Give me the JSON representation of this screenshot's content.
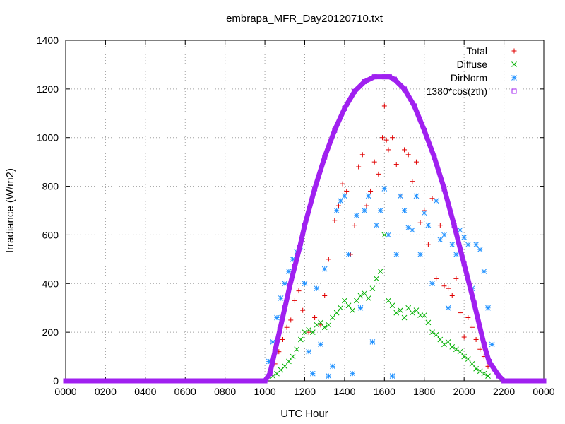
{
  "chart_data": {
    "type": "scatter",
    "title": "embrapa_MFR_Day20120710.txt",
    "xlabel": "UTC Hour",
    "ylabel": "Irradiance (W/m2)",
    "xlim": [
      0,
      24
    ],
    "ylim": [
      0,
      1400
    ],
    "x_ticks": [
      0,
      2,
      4,
      6,
      8,
      10,
      12,
      14,
      16,
      18,
      20,
      22,
      24
    ],
    "x_tick_labels": [
      "0000",
      "0200",
      "0400",
      "0600",
      "0800",
      "1000",
      "1200",
      "1400",
      "1600",
      "1800",
      "2000",
      "2200",
      "0000"
    ],
    "y_ticks": [
      0,
      200,
      400,
      600,
      800,
      1000,
      1200,
      1400
    ],
    "y_tick_labels": [
      "0",
      "200",
      "400",
      "600",
      "800",
      "1000",
      "1200",
      "1400"
    ],
    "grid": true,
    "legend_position": "top-right",
    "series": [
      {
        "name": "Total",
        "marker": "plus",
        "color": "#e00000",
        "x": [
          10.5,
          10.7,
          10.9,
          11.1,
          11.3,
          11.5,
          11.7,
          11.9,
          12.2,
          12.5,
          12.8,
          13.0,
          13.2,
          13.5,
          13.7,
          13.9,
          14.1,
          14.3,
          14.5,
          14.7,
          14.9,
          15.1,
          15.3,
          15.5,
          15.7,
          15.9,
          16.0,
          16.1,
          16.2,
          16.4,
          16.6,
          16.8,
          17.0,
          17.2,
          17.4,
          17.6,
          17.8,
          18.0,
          18.2,
          18.4,
          18.6,
          18.8,
          19.0,
          19.2,
          19.4,
          19.6,
          19.8,
          20.0,
          20.2,
          20.4,
          20.6,
          20.8,
          21.0,
          21.2
        ],
        "y": [
          70,
          120,
          170,
          220,
          250,
          330,
          370,
          290,
          200,
          260,
          230,
          350,
          500,
          660,
          720,
          810,
          780,
          520,
          640,
          880,
          930,
          720,
          780,
          900,
          850,
          1000,
          1130,
          990,
          950,
          1000,
          890,
          760,
          950,
          930,
          820,
          900,
          650,
          700,
          560,
          750,
          420,
          640,
          390,
          380,
          350,
          420,
          280,
          180,
          260,
          220,
          170,
          130,
          100,
          60
        ]
      },
      {
        "name": "Diffuse",
        "marker": "cross",
        "color": "#00b000",
        "x": [
          10.4,
          10.6,
          10.8,
          11.0,
          11.2,
          11.4,
          11.6,
          11.8,
          12.0,
          12.2,
          12.4,
          12.6,
          12.8,
          13.0,
          13.2,
          13.4,
          13.6,
          13.8,
          14.0,
          14.2,
          14.4,
          14.6,
          14.8,
          15.0,
          15.2,
          15.4,
          15.6,
          15.8,
          16.0,
          16.2,
          16.4,
          16.6,
          16.8,
          17.0,
          17.2,
          17.4,
          17.6,
          17.8,
          18.0,
          18.2,
          18.4,
          18.6,
          18.8,
          19.0,
          19.2,
          19.4,
          19.6,
          19.8,
          20.0,
          20.2,
          20.4,
          20.6,
          20.8,
          21.0,
          21.2
        ],
        "y": [
          20,
          30,
          45,
          60,
          80,
          100,
          130,
          170,
          200,
          210,
          200,
          230,
          240,
          220,
          230,
          260,
          280,
          300,
          330,
          310,
          290,
          330,
          350,
          360,
          340,
          380,
          420,
          450,
          600,
          330,
          310,
          280,
          290,
          260,
          300,
          280,
          290,
          270,
          270,
          240,
          200,
          190,
          170,
          150,
          160,
          140,
          130,
          120,
          100,
          90,
          70,
          50,
          40,
          30,
          20
        ]
      },
      {
        "name": "DirNorm",
        "marker": "star",
        "color": "#1e90ff",
        "x": [
          10.2,
          10.4,
          10.6,
          10.8,
          11.0,
          11.2,
          11.4,
          11.6,
          11.8,
          12.0,
          12.2,
          12.4,
          12.6,
          12.8,
          13.0,
          13.2,
          13.4,
          13.6,
          13.8,
          14.0,
          14.2,
          14.4,
          14.6,
          14.8,
          15.0,
          15.2,
          15.4,
          15.6,
          15.8,
          16.0,
          16.2,
          16.4,
          16.6,
          16.8,
          17.0,
          17.2,
          17.4,
          17.6,
          17.8,
          18.0,
          18.2,
          18.4,
          18.6,
          18.8,
          19.0,
          19.2,
          19.4,
          19.6,
          19.8,
          20.0,
          20.2,
          20.4,
          20.6,
          20.8,
          21.0,
          21.2,
          21.4
        ],
        "y": [
          80,
          160,
          260,
          340,
          400,
          450,
          500,
          530,
          550,
          400,
          120,
          30,
          380,
          150,
          460,
          20,
          60,
          700,
          740,
          760,
          520,
          30,
          680,
          300,
          700,
          760,
          160,
          640,
          700,
          790,
          600,
          20,
          520,
          760,
          700,
          630,
          620,
          760,
          520,
          690,
          640,
          400,
          740,
          580,
          600,
          300,
          560,
          520,
          620,
          590,
          560,
          380,
          560,
          540,
          450,
          300,
          150
        ]
      },
      {
        "name": "1380*cos(zth)",
        "marker": "square",
        "color": "#a020f0",
        "x": [
          0,
          1,
          2,
          3,
          4,
          5,
          6,
          7,
          8,
          9,
          10,
          10.25,
          10.5,
          10.75,
          11,
          11.25,
          11.5,
          11.75,
          12,
          12.5,
          13,
          13.5,
          14,
          14.5,
          15,
          15.5,
          16,
          16.25,
          16.5,
          17,
          17.5,
          18,
          18.5,
          19,
          19.5,
          20,
          20.5,
          21,
          21.25,
          21.5,
          21.75,
          22,
          22.25,
          23,
          24
        ],
        "y": [
          0,
          0,
          0,
          0,
          0,
          0,
          0,
          0,
          0,
          0,
          0,
          30,
          120,
          210,
          300,
          390,
          470,
          550,
          640,
          790,
          920,
          1030,
          1120,
          1190,
          1230,
          1250,
          1250,
          1250,
          1240,
          1200,
          1130,
          1030,
          920,
          790,
          640,
          480,
          320,
          150,
          80,
          50,
          20,
          0,
          0,
          0,
          0
        ]
      }
    ]
  }
}
